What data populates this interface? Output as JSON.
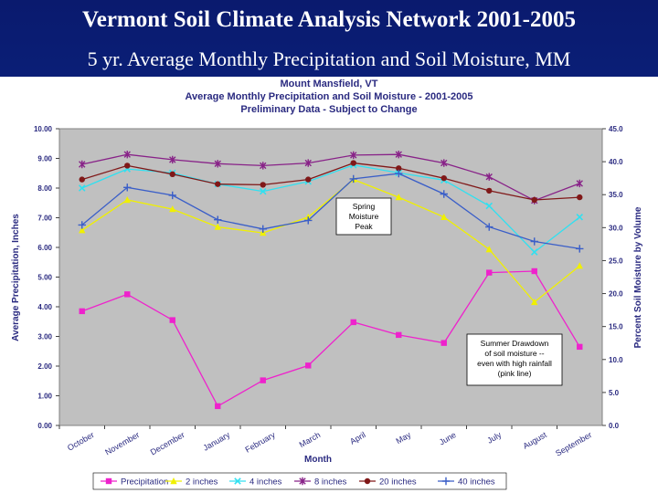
{
  "slide": {
    "title": "Vermont Soil Climate Analysis Network 2001-2005",
    "subtitle": "5 yr. Average Monthly Precipitation and Soil Moisture, MM"
  },
  "chart_data": {
    "type": "line",
    "title_lines": [
      "Mount Mansfield, VT",
      "Average Monthly Precipitation and Soil Moisture  -  2001-2005",
      "Preliminary Data - Subject to Change"
    ],
    "xlabel": "Month",
    "ylabel_left": "Average Precipitation, Inches",
    "ylabel_right": "Percent Soil Moisture by Volume",
    "categories": [
      "October",
      "November",
      "December",
      "January",
      "February",
      "March",
      "April",
      "May",
      "June",
      "July",
      "August",
      "September"
    ],
    "ylim_left": [
      0,
      10
    ],
    "ylim_right": [
      0,
      45
    ],
    "yticks_left": [
      "0.00",
      "1.00",
      "2.00",
      "3.00",
      "4.00",
      "5.00",
      "6.00",
      "7.00",
      "8.00",
      "9.00",
      "10.00"
    ],
    "yticks_right": [
      "0.0",
      "5.0",
      "10.0",
      "15.0",
      "20.0",
      "25.0",
      "30.0",
      "35.0",
      "40.0",
      "45.0"
    ],
    "grid": false,
    "legend_position": "bottom",
    "series": [
      {
        "name": "Precipitation",
        "axis": "left",
        "color": "#ee22cc",
        "marker": "square",
        "values": [
          3.85,
          4.42,
          3.55,
          0.65,
          1.52,
          2.02,
          3.48,
          3.05,
          2.78,
          5.15,
          5.2,
          2.65
        ]
      },
      {
        "name": "2 inches",
        "axis": "right",
        "color": "#f0f000",
        "marker": "triangle",
        "values": [
          29.6,
          34.2,
          32.8,
          30.1,
          29.2,
          31.6,
          37.3,
          34.6,
          31.6,
          26.7,
          18.7,
          24.2
        ]
      },
      {
        "name": "4 inches",
        "axis": "right",
        "color": "#30e0f0",
        "marker": "x",
        "values": [
          36.0,
          38.9,
          38.3,
          36.6,
          35.5,
          37.0,
          39.5,
          38.3,
          37.2,
          33.3,
          26.3,
          31.6
        ]
      },
      {
        "name": "8 inches",
        "axis": "right",
        "color": "#882288",
        "marker": "asterisk",
        "values": [
          39.6,
          41.1,
          40.3,
          39.7,
          39.4,
          39.8,
          41.0,
          41.1,
          39.8,
          37.7,
          34.1,
          36.7
        ]
      },
      {
        "name": "20 inches",
        "axis": "right",
        "color": "#801818",
        "marker": "circle",
        "values": [
          37.3,
          39.4,
          38.1,
          36.6,
          36.5,
          37.3,
          39.8,
          39.0,
          37.5,
          35.6,
          34.2,
          34.6
        ]
      },
      {
        "name": "40 inches",
        "axis": "right",
        "color": "#3a5ec8",
        "marker": "plus",
        "values": [
          30.4,
          36.1,
          34.9,
          31.2,
          29.8,
          31.1,
          37.4,
          38.2,
          35.1,
          30.1,
          27.9,
          26.8
        ]
      }
    ],
    "annotations": [
      {
        "id": "spring",
        "text_lines": [
          "Spring",
          "Moisture",
          "Peak"
        ]
      },
      {
        "id": "summer",
        "text_lines": [
          "Summer Drawdown",
          "of soil moisture --",
          "even with high rainfall",
          "(pink line)"
        ]
      }
    ]
  }
}
